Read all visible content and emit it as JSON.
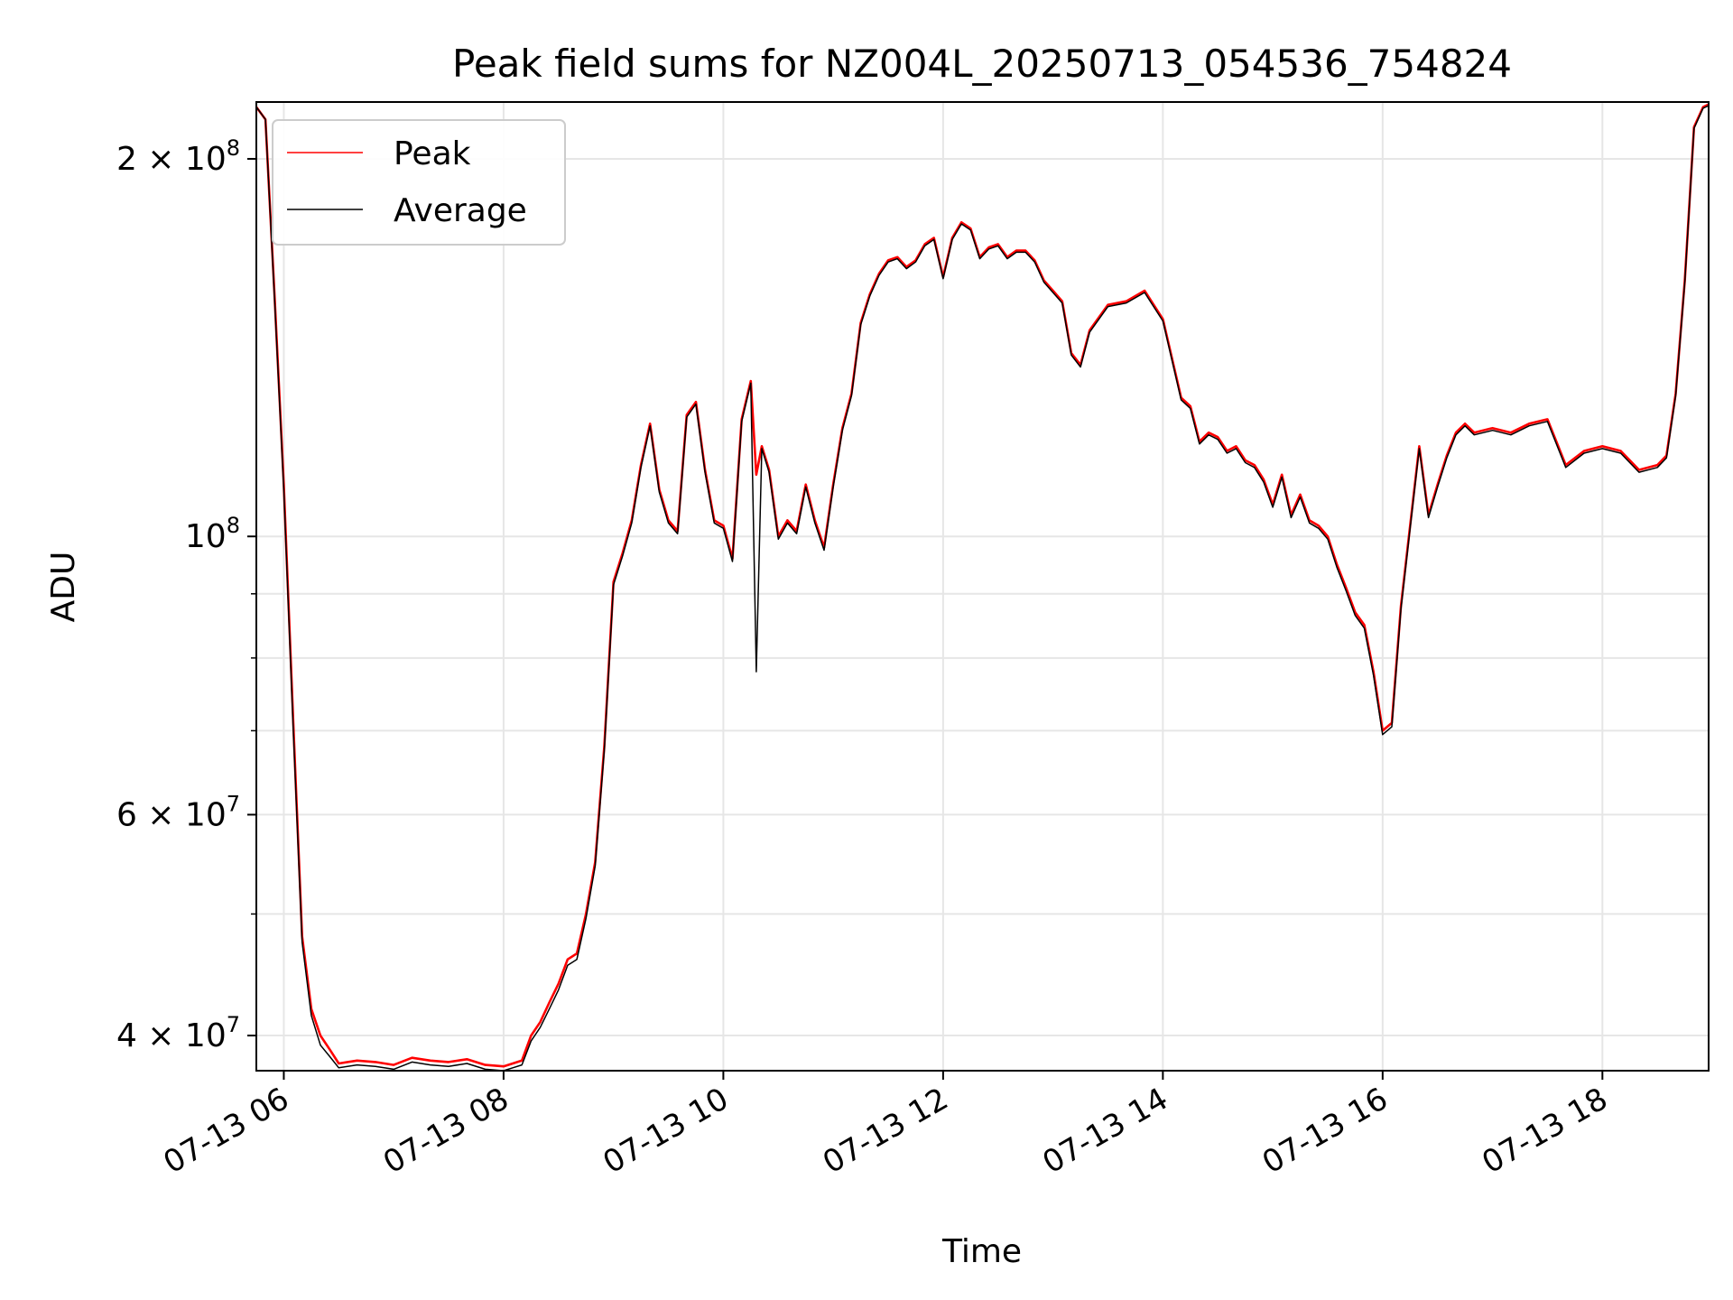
{
  "chart_data": {
    "type": "line",
    "title": "Peak field sums for NZ004L_20250713_054536_754824",
    "xlabel": "Time",
    "ylabel": "ADU",
    "y_scale": "log",
    "grid": true,
    "legend_placement": "top-left",
    "xlim": [
      "2025-07-13 05:45",
      "2025-07-13 18:58"
    ],
    "ylim": [
      37500000,
      222000000
    ],
    "x_ticks": [
      {
        "value": "2025-07-13 06:00",
        "label": "07-13 06"
      },
      {
        "value": "2025-07-13 08:00",
        "label": "07-13 08"
      },
      {
        "value": "2025-07-13 10:00",
        "label": "07-13 10"
      },
      {
        "value": "2025-07-13 12:00",
        "label": "07-13 12"
      },
      {
        "value": "2025-07-13 14:00",
        "label": "07-13 14"
      },
      {
        "value": "2025-07-13 16:00",
        "label": "07-13 16"
      },
      {
        "value": "2025-07-13 18:00",
        "label": "07-13 18"
      }
    ],
    "y_ticks": [
      {
        "value": 40000000,
        "label_base": "4 × 10",
        "label_exp": "7"
      },
      {
        "value": 60000000,
        "label_base": "6 × 10",
        "label_exp": "7"
      },
      {
        "value": 100000000,
        "label_base": "10",
        "label_exp": "8"
      },
      {
        "value": 200000000,
        "label_base": "2 × 10",
        "label_exp": "8"
      }
    ],
    "y_minor_ticks": [
      50000000,
      70000000,
      80000000,
      90000000
    ],
    "series": [
      {
        "name": "Peak",
        "color": "#ff0000",
        "x": [
          "2025-07-13 05:45",
          "2025-07-13 05:50",
          "2025-07-13 05:55",
          "2025-07-13 06:00",
          "2025-07-13 06:05",
          "2025-07-13 06:10",
          "2025-07-13 06:15",
          "2025-07-13 06:20",
          "2025-07-13 06:25",
          "2025-07-13 06:30",
          "2025-07-13 06:40",
          "2025-07-13 06:50",
          "2025-07-13 07:00",
          "2025-07-13 07:10",
          "2025-07-13 07:20",
          "2025-07-13 07:30",
          "2025-07-13 07:40",
          "2025-07-13 07:50",
          "2025-07-13 08:00",
          "2025-07-13 08:05",
          "2025-07-13 08:10",
          "2025-07-13 08:15",
          "2025-07-13 08:20",
          "2025-07-13 08:25",
          "2025-07-13 08:30",
          "2025-07-13 08:35",
          "2025-07-13 08:40",
          "2025-07-13 08:45",
          "2025-07-13 08:50",
          "2025-07-13 08:55",
          "2025-07-13 09:00",
          "2025-07-13 09:05",
          "2025-07-13 09:10",
          "2025-07-13 09:15",
          "2025-07-13 09:20",
          "2025-07-13 09:25",
          "2025-07-13 09:30",
          "2025-07-13 09:35",
          "2025-07-13 09:40",
          "2025-07-13 09:45",
          "2025-07-13 09:50",
          "2025-07-13 09:55",
          "2025-07-13 10:00",
          "2025-07-13 10:05",
          "2025-07-13 10:10",
          "2025-07-13 10:15",
          "2025-07-13 10:18",
          "2025-07-13 10:21",
          "2025-07-13 10:25",
          "2025-07-13 10:30",
          "2025-07-13 10:35",
          "2025-07-13 10:40",
          "2025-07-13 10:45",
          "2025-07-13 10:50",
          "2025-07-13 10:55",
          "2025-07-13 11:00",
          "2025-07-13 11:05",
          "2025-07-13 11:10",
          "2025-07-13 11:15",
          "2025-07-13 11:20",
          "2025-07-13 11:25",
          "2025-07-13 11:30",
          "2025-07-13 11:35",
          "2025-07-13 11:40",
          "2025-07-13 11:45",
          "2025-07-13 11:50",
          "2025-07-13 11:55",
          "2025-07-13 12:00",
          "2025-07-13 12:05",
          "2025-07-13 12:10",
          "2025-07-13 12:15",
          "2025-07-13 12:20",
          "2025-07-13 12:25",
          "2025-07-13 12:30",
          "2025-07-13 12:35",
          "2025-07-13 12:40",
          "2025-07-13 12:45",
          "2025-07-13 12:50",
          "2025-07-13 12:55",
          "2025-07-13 13:00",
          "2025-07-13 13:05",
          "2025-07-13 13:10",
          "2025-07-13 13:15",
          "2025-07-13 13:20",
          "2025-07-13 13:30",
          "2025-07-13 13:40",
          "2025-07-13 13:50",
          "2025-07-13 14:00",
          "2025-07-13 14:10",
          "2025-07-13 14:15",
          "2025-07-13 14:20",
          "2025-07-13 14:25",
          "2025-07-13 14:30",
          "2025-07-13 14:35",
          "2025-07-13 14:40",
          "2025-07-13 14:45",
          "2025-07-13 14:50",
          "2025-07-13 14:55",
          "2025-07-13 15:00",
          "2025-07-13 15:05",
          "2025-07-13 15:10",
          "2025-07-13 15:15",
          "2025-07-13 15:20",
          "2025-07-13 15:25",
          "2025-07-13 15:30",
          "2025-07-13 15:35",
          "2025-07-13 15:40",
          "2025-07-13 15:45",
          "2025-07-13 15:50",
          "2025-07-13 15:55",
          "2025-07-13 16:00",
          "2025-07-13 16:05",
          "2025-07-13 16:10",
          "2025-07-13 16:15",
          "2025-07-13 16:20",
          "2025-07-13 16:25",
          "2025-07-13 16:30",
          "2025-07-13 16:35",
          "2025-07-13 16:40",
          "2025-07-13 16:45",
          "2025-07-13 16:50",
          "2025-07-13 17:00",
          "2025-07-13 17:10",
          "2025-07-13 17:20",
          "2025-07-13 17:30",
          "2025-07-13 17:40",
          "2025-07-13 17:50",
          "2025-07-13 18:00",
          "2025-07-13 18:10",
          "2025-07-13 18:20",
          "2025-07-13 18:30",
          "2025-07-13 18:35",
          "2025-07-13 18:40",
          "2025-07-13 18:45",
          "2025-07-13 18:50",
          "2025-07-13 18:55",
          "2025-07-13 18:58"
        ],
        "y": [
          220000000,
          215000000,
          155000000,
          110000000,
          72000000,
          48000000,
          42000000,
          40000000,
          39000000,
          38000000,
          38200000,
          38100000,
          37900000,
          38400000,
          38200000,
          38100000,
          38300000,
          37900000,
          37800000,
          38000000,
          38200000,
          40000000,
          41000000,
          42500000,
          44000000,
          46000000,
          46500000,
          50000000,
          55000000,
          68000000,
          92000000,
          97000000,
          103000000,
          114000000,
          123000000,
          109000000,
          103000000,
          101000000,
          125000000,
          128000000,
          113000000,
          103000000,
          102000000,
          96000000,
          124000000,
          133000000,
          112000000,
          118000000,
          113000000,
          100000000,
          103000000,
          101000000,
          110000000,
          103000000,
          98000000,
          110000000,
          122000000,
          130000000,
          148000000,
          156000000,
          162000000,
          166000000,
          167000000,
          164000000,
          166000000,
          171000000,
          173000000,
          161000000,
          173000000,
          178000000,
          176000000,
          167000000,
          170000000,
          171000000,
          167000000,
          169000000,
          169000000,
          166000000,
          160000000,
          157000000,
          154000000,
          140000000,
          137000000,
          146000000,
          153000000,
          154000000,
          157000000,
          149000000,
          129000000,
          127000000,
          119000000,
          121000000,
          120000000,
          117000000,
          118000000,
          115000000,
          114000000,
          111000000,
          106000000,
          112000000,
          104000000,
          108000000,
          103000000,
          102000000,
          100000000,
          95000000,
          91000000,
          87000000,
          85000000,
          78000000,
          70000000,
          71000000,
          88000000,
          102000000,
          118000000,
          104000000,
          110000000,
          116000000,
          121000000,
          123000000,
          121000000,
          122000000,
          121000000,
          123000000,
          124000000,
          114000000,
          117000000,
          118000000,
          117000000,
          113000000,
          114000000,
          116000000,
          130000000,
          160000000,
          212000000,
          220000000,
          221000000
        ]
      },
      {
        "name": "Average",
        "color": "#000000",
        "x": [
          "2025-07-13 05:45",
          "2025-07-13 05:50",
          "2025-07-13 05:55",
          "2025-07-13 06:00",
          "2025-07-13 06:05",
          "2025-07-13 06:10",
          "2025-07-13 06:15",
          "2025-07-13 06:20",
          "2025-07-13 06:25",
          "2025-07-13 06:30",
          "2025-07-13 06:40",
          "2025-07-13 06:50",
          "2025-07-13 07:00",
          "2025-07-13 07:10",
          "2025-07-13 07:20",
          "2025-07-13 07:30",
          "2025-07-13 07:40",
          "2025-07-13 07:50",
          "2025-07-13 08:00",
          "2025-07-13 08:05",
          "2025-07-13 08:10",
          "2025-07-13 08:15",
          "2025-07-13 08:20",
          "2025-07-13 08:25",
          "2025-07-13 08:30",
          "2025-07-13 08:35",
          "2025-07-13 08:40",
          "2025-07-13 08:45",
          "2025-07-13 08:50",
          "2025-07-13 08:55",
          "2025-07-13 09:00",
          "2025-07-13 09:05",
          "2025-07-13 09:10",
          "2025-07-13 09:15",
          "2025-07-13 09:20",
          "2025-07-13 09:25",
          "2025-07-13 09:30",
          "2025-07-13 09:35",
          "2025-07-13 09:40",
          "2025-07-13 09:45",
          "2025-07-13 09:50",
          "2025-07-13 09:55",
          "2025-07-13 10:00",
          "2025-07-13 10:05",
          "2025-07-13 10:10",
          "2025-07-13 10:15",
          "2025-07-13 10:18",
          "2025-07-13 10:21",
          "2025-07-13 10:25",
          "2025-07-13 10:30",
          "2025-07-13 10:35",
          "2025-07-13 10:40",
          "2025-07-13 10:45",
          "2025-07-13 10:50",
          "2025-07-13 10:55",
          "2025-07-13 11:00",
          "2025-07-13 11:05",
          "2025-07-13 11:10",
          "2025-07-13 11:15",
          "2025-07-13 11:20",
          "2025-07-13 11:25",
          "2025-07-13 11:30",
          "2025-07-13 11:35",
          "2025-07-13 11:40",
          "2025-07-13 11:45",
          "2025-07-13 11:50",
          "2025-07-13 11:55",
          "2025-07-13 12:00",
          "2025-07-13 12:05",
          "2025-07-13 12:10",
          "2025-07-13 12:15",
          "2025-07-13 12:20",
          "2025-07-13 12:25",
          "2025-07-13 12:30",
          "2025-07-13 12:35",
          "2025-07-13 12:40",
          "2025-07-13 12:45",
          "2025-07-13 12:50",
          "2025-07-13 12:55",
          "2025-07-13 13:00",
          "2025-07-13 13:05",
          "2025-07-13 13:10",
          "2025-07-13 13:15",
          "2025-07-13 13:20",
          "2025-07-13 13:30",
          "2025-07-13 13:40",
          "2025-07-13 13:50",
          "2025-07-13 14:00",
          "2025-07-13 14:10",
          "2025-07-13 14:15",
          "2025-07-13 14:20",
          "2025-07-13 14:25",
          "2025-07-13 14:30",
          "2025-07-13 14:35",
          "2025-07-13 14:40",
          "2025-07-13 14:45",
          "2025-07-13 14:50",
          "2025-07-13 14:55",
          "2025-07-13 15:00",
          "2025-07-13 15:05",
          "2025-07-13 15:10",
          "2025-07-13 15:15",
          "2025-07-13 15:20",
          "2025-07-13 15:25",
          "2025-07-13 15:30",
          "2025-07-13 15:35",
          "2025-07-13 15:40",
          "2025-07-13 15:45",
          "2025-07-13 15:50",
          "2025-07-13 15:55",
          "2025-07-13 16:00",
          "2025-07-13 16:05",
          "2025-07-13 16:10",
          "2025-07-13 16:15",
          "2025-07-13 16:20",
          "2025-07-13 16:25",
          "2025-07-13 16:30",
          "2025-07-13 16:35",
          "2025-07-13 16:40",
          "2025-07-13 16:45",
          "2025-07-13 16:50",
          "2025-07-13 17:00",
          "2025-07-13 17:10",
          "2025-07-13 17:20",
          "2025-07-13 17:30",
          "2025-07-13 17:40",
          "2025-07-13 17:50",
          "2025-07-13 18:00",
          "2025-07-13 18:10",
          "2025-07-13 18:20",
          "2025-07-13 18:30",
          "2025-07-13 18:35",
          "2025-07-13 18:40",
          "2025-07-13 18:45",
          "2025-07-13 18:50",
          "2025-07-13 18:55",
          "2025-07-13 18:58"
        ],
        "y": [
          220000000,
          215000000,
          154000000,
          109000000,
          71000000,
          47500000,
          41500000,
          39300000,
          38500000,
          37700000,
          37900000,
          37800000,
          37600000,
          38100000,
          37900000,
          37800000,
          38000000,
          37600000,
          37500000,
          37700000,
          37900000,
          39600000,
          40600000,
          42000000,
          43500000,
          45500000,
          46000000,
          49600000,
          54600000,
          67500000,
          91500000,
          96500000,
          102500000,
          113500000,
          122500000,
          108500000,
          102500000,
          100500000,
          124500000,
          127500000,
          112500000,
          102500000,
          101500000,
          95500000,
          123500000,
          132500000,
          78000000,
          117500000,
          112500000,
          99500000,
          102500000,
          100500000,
          109500000,
          102500000,
          97500000,
          109500000,
          121500000,
          129500000,
          147500000,
          155500000,
          161500000,
          165500000,
          166500000,
          163500000,
          165500000,
          170500000,
          172500000,
          160500000,
          172500000,
          177500000,
          175500000,
          166500000,
          169500000,
          170500000,
          166500000,
          168500000,
          168500000,
          165500000,
          159500000,
          156500000,
          153500000,
          139500000,
          136500000,
          145500000,
          152500000,
          153500000,
          156500000,
          148500000,
          128500000,
          126500000,
          118500000,
          120500000,
          119500000,
          116500000,
          117500000,
          114500000,
          113500000,
          110500000,
          105500000,
          111500000,
          103500000,
          107500000,
          102500000,
          101500000,
          99500000,
          94500000,
          90500000,
          86500000,
          84500000,
          77500000,
          69500000,
          70500000,
          87500000,
          101500000,
          117500000,
          103500000,
          109500000,
          115500000,
          120500000,
          122500000,
          120500000,
          121500000,
          120500000,
          122500000,
          123500000,
          113500000,
          116500000,
          117500000,
          116500000,
          112500000,
          113500000,
          115500000,
          129500000,
          159500000,
          211500000,
          219500000,
          220500000
        ]
      }
    ]
  }
}
